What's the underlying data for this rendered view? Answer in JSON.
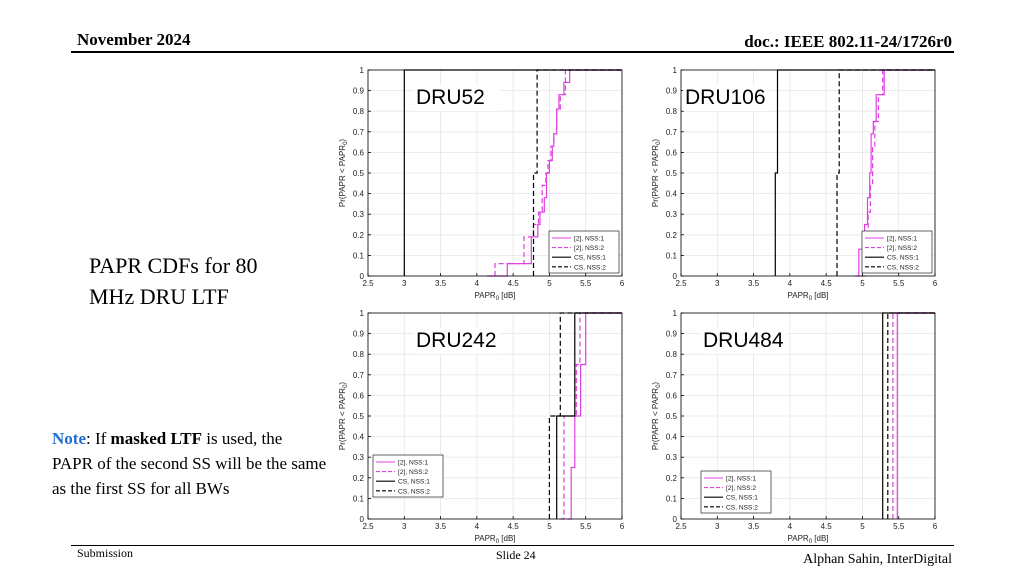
{
  "header": {
    "date": "November 2024",
    "doc": "doc.: IEEE 802.11-24/1726r0"
  },
  "footer": {
    "left": "Submission",
    "center": "Slide 24",
    "right": "Alphan Sahin, InterDigital"
  },
  "side_title": "PAPR CDFs for 80 MHz DRU LTF",
  "note": {
    "label": "Note",
    "part1": ": If ",
    "bold": "masked LTF",
    "part2": " is used, the PAPR of the second SS will be the same as the first SS for all BWs"
  },
  "colors": {
    "magenta": "#e040e0",
    "black": "#000000",
    "grid": "#e6e6e6"
  },
  "chart_data": [
    {
      "type": "line",
      "title": "DRU52",
      "xlabel": "PAPR_0 [dB]",
      "ylabel": "Pr(PAPR < PAPR_0)",
      "xlim": [
        2.5,
        6
      ],
      "ylim": [
        0,
        1
      ],
      "xticks": [
        "2.5",
        "3",
        "3.5",
        "4",
        "4.5",
        "5",
        "5.5",
        "6"
      ],
      "yticks": [
        "0",
        "0.1",
        "0.2",
        "0.3",
        "0.4",
        "0.5",
        "0.6",
        "0.7",
        "0.8",
        "0.9",
        "1"
      ],
      "grid": true,
      "legend_position": "bottom-right",
      "step": true,
      "series": [
        {
          "name": "[2], NSS:1",
          "color": "#e040e0",
          "dash": "solid",
          "x": [
            4.2,
            4.42,
            4.75,
            4.84,
            4.87,
            4.93,
            4.96,
            5.0,
            5.04,
            5.06,
            5.1,
            5.13,
            5.2,
            5.28,
            6.0
          ],
          "y": [
            0,
            0.06,
            0.19,
            0.25,
            0.31,
            0.38,
            0.5,
            0.56,
            0.63,
            0.69,
            0.81,
            0.88,
            0.94,
            1.0,
            1.0
          ]
        },
        {
          "name": "[2], NSS:2",
          "color": "#e040e0",
          "dash": "dashed",
          "x": [
            4.14,
            4.25,
            4.65,
            4.78,
            4.85,
            4.9,
            4.95,
            4.98,
            5.02,
            5.06,
            5.1,
            5.15,
            5.22,
            6.0
          ],
          "y": [
            0,
            0.06,
            0.19,
            0.25,
            0.31,
            0.44,
            0.5,
            0.56,
            0.63,
            0.69,
            0.81,
            0.88,
            1.0,
            1.0
          ]
        },
        {
          "name": "CS, NSS:1",
          "color": "#000000",
          "dash": "solid",
          "x": [
            3.0,
            6.0
          ],
          "y": [
            1.0,
            1.0
          ],
          "start_x": 3.0
        },
        {
          "name": "CS, NSS:2",
          "color": "#000000",
          "dash": "dashed",
          "x": [
            4.78,
            4.83,
            6.0
          ],
          "y": [
            0.5,
            1.0,
            1.0
          ]
        }
      ]
    },
    {
      "type": "line",
      "title": "DRU106",
      "xlabel": "PAPR_0 [dB]",
      "ylabel": "Pr(PAPR < PAPR_0)",
      "xlim": [
        2.5,
        6
      ],
      "ylim": [
        0,
        1
      ],
      "xticks": [
        "2.5",
        "3",
        "3.5",
        "4",
        "4.5",
        "5",
        "5.5",
        "6"
      ],
      "yticks": [
        "0",
        "0.1",
        "0.2",
        "0.3",
        "0.4",
        "0.5",
        "0.6",
        "0.7",
        "0.8",
        "0.9",
        "1"
      ],
      "grid": true,
      "legend_position": "bottom-right",
      "step": true,
      "series": [
        {
          "name": "[2], NSS:1",
          "color": "#e040e0",
          "dash": "solid",
          "x": [
            4.9,
            4.95,
            5.03,
            5.07,
            5.1,
            5.12,
            5.15,
            5.19,
            5.3,
            6.0
          ],
          "y": [
            0,
            0.13,
            0.25,
            0.38,
            0.5,
            0.69,
            0.75,
            0.88,
            1.0,
            1.0
          ]
        },
        {
          "name": "[2], NSS:2",
          "color": "#e040e0",
          "dash": "dashed",
          "x": [
            4.97,
            5.04,
            5.08,
            5.11,
            5.14,
            5.17,
            5.22,
            5.28,
            6.0
          ],
          "y": [
            0,
            0.19,
            0.31,
            0.44,
            0.63,
            0.75,
            0.88,
            1.0,
            1.0
          ]
        },
        {
          "name": "CS, NSS:1",
          "color": "#000000",
          "dash": "solid",
          "x": [
            3.8,
            3.83,
            6.0
          ],
          "y": [
            0.5,
            1.0,
            1.0
          ]
        },
        {
          "name": "CS, NSS:2",
          "color": "#000000",
          "dash": "dashed",
          "x": [
            4.65,
            4.68,
            6.0
          ],
          "y": [
            0.5,
            1.0,
            1.0
          ]
        }
      ]
    },
    {
      "type": "line",
      "title": "DRU242",
      "xlabel": "PAPR_0 [dB]",
      "ylabel": "Pr(PAPR < PAPR_0)",
      "xlim": [
        2.5,
        6
      ],
      "ylim": [
        0,
        1
      ],
      "xticks": [
        "2.5",
        "3",
        "3.5",
        "4",
        "4.5",
        "5",
        "5.5",
        "6"
      ],
      "yticks": [
        "0",
        "0.1",
        "0.2",
        "0.3",
        "0.4",
        "0.5",
        "0.6",
        "0.7",
        "0.8",
        "0.9",
        "1"
      ],
      "grid": true,
      "legend_position": "bottom-left",
      "step": true,
      "series": [
        {
          "name": "[2], NSS:1",
          "color": "#e040e0",
          "dash": "solid",
          "x": [
            5.25,
            5.3,
            5.35,
            5.43,
            5.5,
            6.0
          ],
          "y": [
            0,
            0.25,
            0.5,
            0.75,
            1.0,
            1.0
          ]
        },
        {
          "name": "[2], NSS:2",
          "color": "#e040e0",
          "dash": "dashed",
          "x": [
            5.15,
            5.2,
            5.37,
            5.42,
            6.0
          ],
          "y": [
            0,
            0.5,
            0.75,
            1.0,
            1.0
          ]
        },
        {
          "name": "CS, NSS:1",
          "color": "#000000",
          "dash": "solid",
          "x": [
            5.1,
            5.35,
            6.0
          ],
          "y": [
            0.5,
            1.0,
            1.0
          ]
        },
        {
          "name": "CS, NSS:2",
          "color": "#000000",
          "dash": "dashed",
          "x": [
            5.0,
            5.15,
            6.0
          ],
          "y": [
            0.5,
            1.0,
            1.0
          ]
        }
      ]
    },
    {
      "type": "line",
      "title": "DRU484",
      "xlabel": "PAPR_0 [dB]",
      "ylabel": "Pr(PAPR < PAPR_0)",
      "xlim": [
        2.5,
        6
      ],
      "ylim": [
        0,
        1
      ],
      "xticks": [
        "2.5",
        "3",
        "3.5",
        "4",
        "4.5",
        "5",
        "5.5",
        "6"
      ],
      "yticks": [
        "0",
        "0.1",
        "0.2",
        "0.3",
        "0.4",
        "0.5",
        "0.6",
        "0.7",
        "0.8",
        "0.9",
        "1"
      ],
      "grid": true,
      "legend_position": "bottom-left",
      "step": true,
      "series": [
        {
          "name": "[2], NSS:1",
          "color": "#e040e0",
          "dash": "solid",
          "x": [
            5.48,
            6.0
          ],
          "y": [
            1.0,
            1.0
          ]
        },
        {
          "name": "[2], NSS:2",
          "color": "#e040e0",
          "dash": "dashed",
          "x": [
            5.42,
            6.0
          ],
          "y": [
            1.0,
            1.0
          ]
        },
        {
          "name": "CS, NSS:1",
          "color": "#000000",
          "dash": "solid",
          "x": [
            5.28,
            6.0
          ],
          "y": [
            1.0,
            1.0
          ]
        },
        {
          "name": "CS, NSS:2",
          "color": "#000000",
          "dash": "dashed",
          "x": [
            5.35,
            6.0
          ],
          "y": [
            1.0,
            1.0
          ]
        }
      ]
    }
  ]
}
